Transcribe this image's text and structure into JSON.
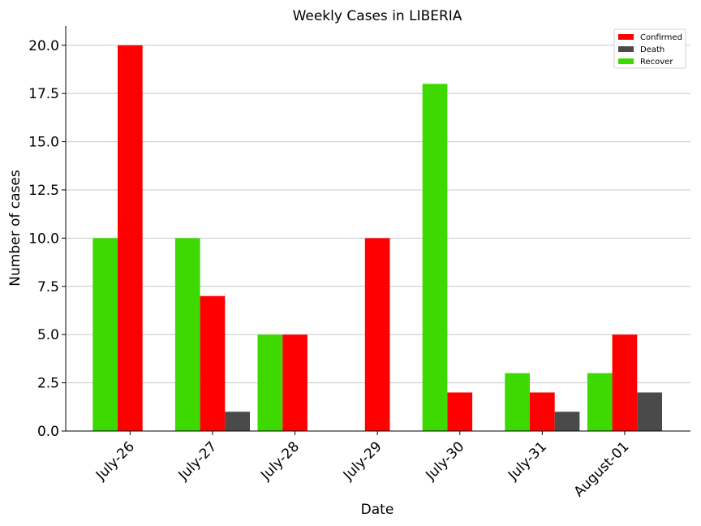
{
  "chart_data": {
    "type": "bar",
    "title": "Weekly Cases in LIBERIA",
    "xlabel": "Date",
    "ylabel": "Number of cases",
    "categories": [
      "July-26",
      "July-27",
      "July-28",
      "July-29",
      "July-30",
      "July-31",
      "August-01"
    ],
    "series": [
      {
        "name": "Recover",
        "color": "#3dd900",
        "values": [
          10,
          10,
          5,
          0,
          18,
          3,
          3
        ]
      },
      {
        "name": "Confirmed",
        "color": "#ff0000",
        "values": [
          20,
          7,
          5,
          10,
          2,
          2,
          5
        ]
      },
      {
        "name": "Death",
        "color": "#4a4a4a",
        "values": [
          0,
          1,
          0,
          0,
          0,
          1,
          2
        ]
      }
    ],
    "legend_order": [
      "Confirmed",
      "Death",
      "Recover"
    ],
    "legend_position": "top-right",
    "ylim": [
      0,
      21
    ],
    "yticks": [
      "0.0",
      "2.5",
      "5.0",
      "7.5",
      "10.0",
      "12.5",
      "15.0",
      "17.5",
      "20.0"
    ],
    "grid": "horizontal"
  }
}
